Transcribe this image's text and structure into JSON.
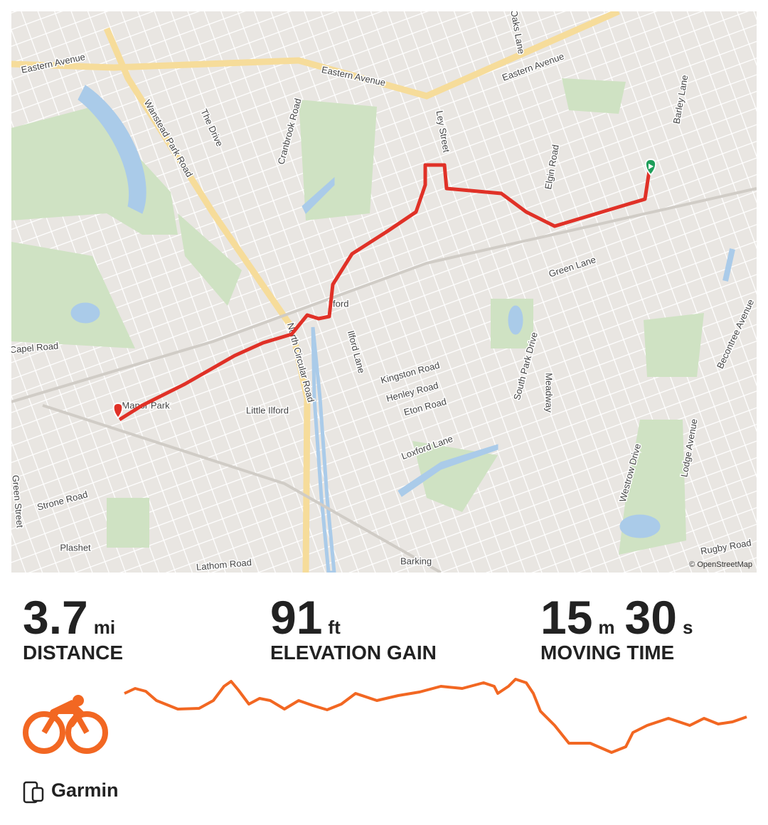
{
  "map": {
    "labels": [
      "Eastern Avenue",
      "Eastern Avenue",
      "Eastern Avenue",
      "Wanstead Park Road",
      "The Drive",
      "Cranbrook Road",
      "Ley Street",
      "Oaks Lane",
      "Elgin Road",
      "Barley Lane",
      "Green Lane",
      "Ilford",
      "North Circular Road",
      "Ilford Lane",
      "Kingston Road",
      "Henley Road",
      "Eton Road",
      "Loxford Lane",
      "South Park Drive",
      "Meadway",
      "Little Ilford",
      "Manor Park",
      "Capel Road",
      "Strone Road",
      "Green Street",
      "Plashet",
      "Lathom Road",
      "Barking",
      "Westrow Drive",
      "Lodge Avenue",
      "Becontree Avenue",
      "Rugby Road"
    ],
    "attribution": "© OpenStreetMap"
  },
  "stats": [
    {
      "parts": [
        {
          "value": 3.7,
          "unit": "mi"
        }
      ],
      "label": "DISTANCE"
    },
    {
      "parts": [
        {
          "value": 91,
          "unit": "ft"
        }
      ],
      "label": "ELEVATION GAIN"
    },
    {
      "parts": [
        {
          "value": 15,
          "unit": "m"
        },
        {
          "value": 30,
          "unit": "s"
        }
      ],
      "label": "MOVING TIME"
    }
  ],
  "source": "Garmin"
}
